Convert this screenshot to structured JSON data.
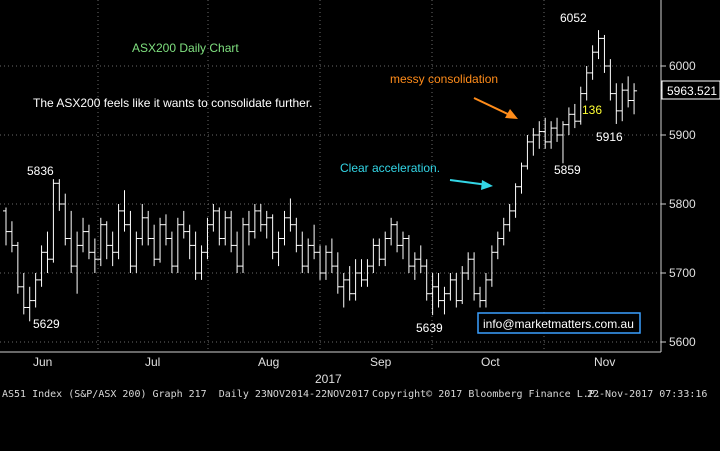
{
  "chart_data": {
    "type": "ohlc",
    "title": "ASX200 Daily Chart",
    "y_axis": {
      "ticks": [
        5600,
        5700,
        5800,
        5900,
        6000
      ],
      "range": [
        5590,
        6080
      ],
      "side": "right",
      "current_value": "5963.521"
    },
    "x_axis": {
      "tick_labels": [
        "Jun",
        "Jul",
        "Aug",
        "Sep",
        "Oct",
        "Nov"
      ],
      "year_label": "2017"
    },
    "grid": "dotted",
    "series_color": "#ffffff",
    "bars_approx": [
      [
        5790,
        5795,
        5740,
        5760
      ],
      [
        5760,
        5775,
        5730,
        5740
      ],
      [
        5740,
        5745,
        5670,
        5680
      ],
      [
        5680,
        5700,
        5640,
        5650
      ],
      [
        5650,
        5680,
        5630,
        5660
      ],
      [
        5660,
        5700,
        5650,
        5690
      ],
      [
        5690,
        5740,
        5680,
        5730
      ],
      [
        5730,
        5760,
        5700,
        5720
      ],
      [
        5720,
        5836,
        5715,
        5830
      ],
      [
        5830,
        5836,
        5790,
        5800
      ],
      [
        5800,
        5815,
        5740,
        5750
      ],
      [
        5750,
        5790,
        5700,
        5710
      ],
      [
        5710,
        5760,
        5670,
        5740
      ],
      [
        5740,
        5780,
        5730,
        5760
      ],
      [
        5760,
        5770,
        5720,
        5730
      ],
      [
        5730,
        5750,
        5700,
        5720
      ],
      [
        5720,
        5780,
        5710,
        5770
      ],
      [
        5770,
        5775,
        5720,
        5740
      ],
      [
        5740,
        5760,
        5710,
        5730
      ],
      [
        5730,
        5800,
        5720,
        5790
      ],
      [
        5790,
        5820,
        5760,
        5770
      ],
      [
        5770,
        5790,
        5700,
        5710
      ],
      [
        5710,
        5760,
        5700,
        5750
      ],
      [
        5750,
        5800,
        5740,
        5780
      ],
      [
        5780,
        5790,
        5740,
        5750
      ],
      [
        5750,
        5770,
        5710,
        5720
      ],
      [
        5720,
        5780,
        5715,
        5770
      ],
      [
        5770,
        5785,
        5740,
        5750
      ],
      [
        5750,
        5760,
        5700,
        5710
      ],
      [
        5710,
        5780,
        5700,
        5770
      ],
      [
        5770,
        5790,
        5750,
        5760
      ],
      [
        5760,
        5770,
        5720,
        5740
      ],
      [
        5740,
        5760,
        5690,
        5700
      ],
      [
        5700,
        5740,
        5690,
        5730
      ],
      [
        5730,
        5780,
        5720,
        5770
      ],
      [
        5770,
        5800,
        5760,
        5790
      ],
      [
        5790,
        5795,
        5740,
        5750
      ],
      [
        5750,
        5790,
        5740,
        5780
      ],
      [
        5780,
        5790,
        5730,
        5740
      ],
      [
        5740,
        5760,
        5700,
        5710
      ],
      [
        5710,
        5780,
        5700,
        5770
      ],
      [
        5770,
        5790,
        5740,
        5760
      ],
      [
        5760,
        5800,
        5750,
        5790
      ],
      [
        5790,
        5800,
        5760,
        5770
      ],
      [
        5770,
        5790,
        5750,
        5780
      ],
      [
        5780,
        5785,
        5720,
        5730
      ],
      [
        5730,
        5760,
        5710,
        5750
      ],
      [
        5750,
        5790,
        5740,
        5780
      ],
      [
        5780,
        5808,
        5760,
        5770
      ],
      [
        5770,
        5780,
        5730,
        5740
      ],
      [
        5740,
        5760,
        5700,
        5710
      ],
      [
        5710,
        5750,
        5700,
        5740
      ],
      [
        5740,
        5770,
        5720,
        5730
      ],
      [
        5730,
        5740,
        5690,
        5700
      ],
      [
        5700,
        5740,
        5690,
        5730
      ],
      [
        5730,
        5750,
        5700,
        5710
      ],
      [
        5710,
        5730,
        5670,
        5680
      ],
      [
        5680,
        5700,
        5650,
        5690
      ],
      [
        5690,
        5710,
        5660,
        5670
      ],
      [
        5670,
        5720,
        5660,
        5700
      ],
      [
        5700,
        5720,
        5680,
        5690
      ],
      [
        5690,
        5720,
        5680,
        5710
      ],
      [
        5710,
        5750,
        5700,
        5740
      ],
      [
        5740,
        5750,
        5710,
        5720
      ],
      [
        5720,
        5760,
        5710,
        5750
      ],
      [
        5750,
        5780,
        5740,
        5770
      ],
      [
        5770,
        5775,
        5730,
        5740
      ],
      [
        5740,
        5760,
        5720,
        5750
      ],
      [
        5750,
        5755,
        5700,
        5710
      ],
      [
        5710,
        5730,
        5690,
        5720
      ],
      [
        5720,
        5740,
        5700,
        5710
      ],
      [
        5710,
        5720,
        5660,
        5670
      ],
      [
        5670,
        5700,
        5639,
        5680
      ],
      [
        5680,
        5700,
        5650,
        5660
      ],
      [
        5660,
        5680,
        5640,
        5670
      ],
      [
        5670,
        5700,
        5660,
        5690
      ],
      [
        5690,
        5700,
        5650,
        5660
      ],
      [
        5660,
        5710,
        5655,
        5700
      ],
      [
        5700,
        5730,
        5690,
        5720
      ],
      [
        5720,
        5730,
        5660,
        5670
      ],
      [
        5670,
        5680,
        5650,
        5660
      ],
      [
        5660,
        5700,
        5650,
        5690
      ],
      [
        5690,
        5740,
        5680,
        5730
      ],
      [
        5730,
        5760,
        5720,
        5750
      ],
      [
        5750,
        5780,
        5740,
        5770
      ],
      [
        5770,
        5800,
        5760,
        5790
      ],
      [
        5790,
        5830,
        5780,
        5825
      ],
      [
        5825,
        5860,
        5815,
        5855
      ],
      [
        5855,
        5900,
        5850,
        5890
      ],
      [
        5890,
        5910,
        5870,
        5900
      ],
      [
        5900,
        5920,
        5880,
        5905
      ],
      [
        5905,
        5925,
        5880,
        5890
      ],
      [
        5890,
        5920,
        5880,
        5910
      ],
      [
        5910,
        5925,
        5890,
        5900
      ],
      [
        5900,
        5920,
        5859,
        5915
      ],
      [
        5915,
        5940,
        5900,
        5930
      ],
      [
        5930,
        5945,
        5910,
        5920
      ],
      [
        5920,
        5970,
        5915,
        5960
      ],
      [
        5960,
        6000,
        5950,
        5990
      ],
      [
        5990,
        6030,
        5980,
        6020
      ],
      [
        6020,
        6052,
        6010,
        6040
      ],
      [
        6040,
        6045,
        5990,
        6000
      ],
      [
        6000,
        6010,
        5950,
        5960
      ],
      [
        5960,
        5975,
        5916,
        5935
      ],
      [
        5935,
        5975,
        5920,
        5965
      ],
      [
        5965,
        5985,
        5940,
        5950
      ],
      [
        5950,
        5975,
        5930,
        5964
      ]
    ]
  },
  "text": {
    "chart_title": "ASX200 Daily Chart",
    "commentary": "The ASX200 feels like it wants to consolidate further.",
    "annotation_consolidation": "messy consolidation",
    "annotation_acceleration": "Clear acceleration.",
    "label_5836": "5836",
    "label_5629": "5629",
    "label_5639": "5639",
    "label_5859": "5859",
    "label_6052": "6052",
    "label_5916": "5916",
    "label_136": "136",
    "email": "info@marketmatters.com.au",
    "y_ticks": [
      "6000",
      "5900",
      "5800",
      "5700",
      "5600"
    ],
    "current_price": "5963.521",
    "months": [
      "Jun",
      "Jul",
      "Aug",
      "Sep",
      "Oct",
      "Nov"
    ],
    "year": "2017"
  },
  "footer": {
    "left": "AS51 Index (S&P/ASX 200) Graph 217  Daily 23NOV2014-22NOV2017",
    "center": "Copyright© 2017 Bloomberg Finance L.P.",
    "right": "22-Nov-2017 07:33:16"
  },
  "colors": {
    "background": "#000000",
    "bars": "#ffffff",
    "title_green": "#7fe07f",
    "orange": "#ff8c1a",
    "cyan": "#33d6e6",
    "yellow": "#ffff33",
    "grid": "#6a6a6a",
    "email_border": "#3aa0ff"
  }
}
